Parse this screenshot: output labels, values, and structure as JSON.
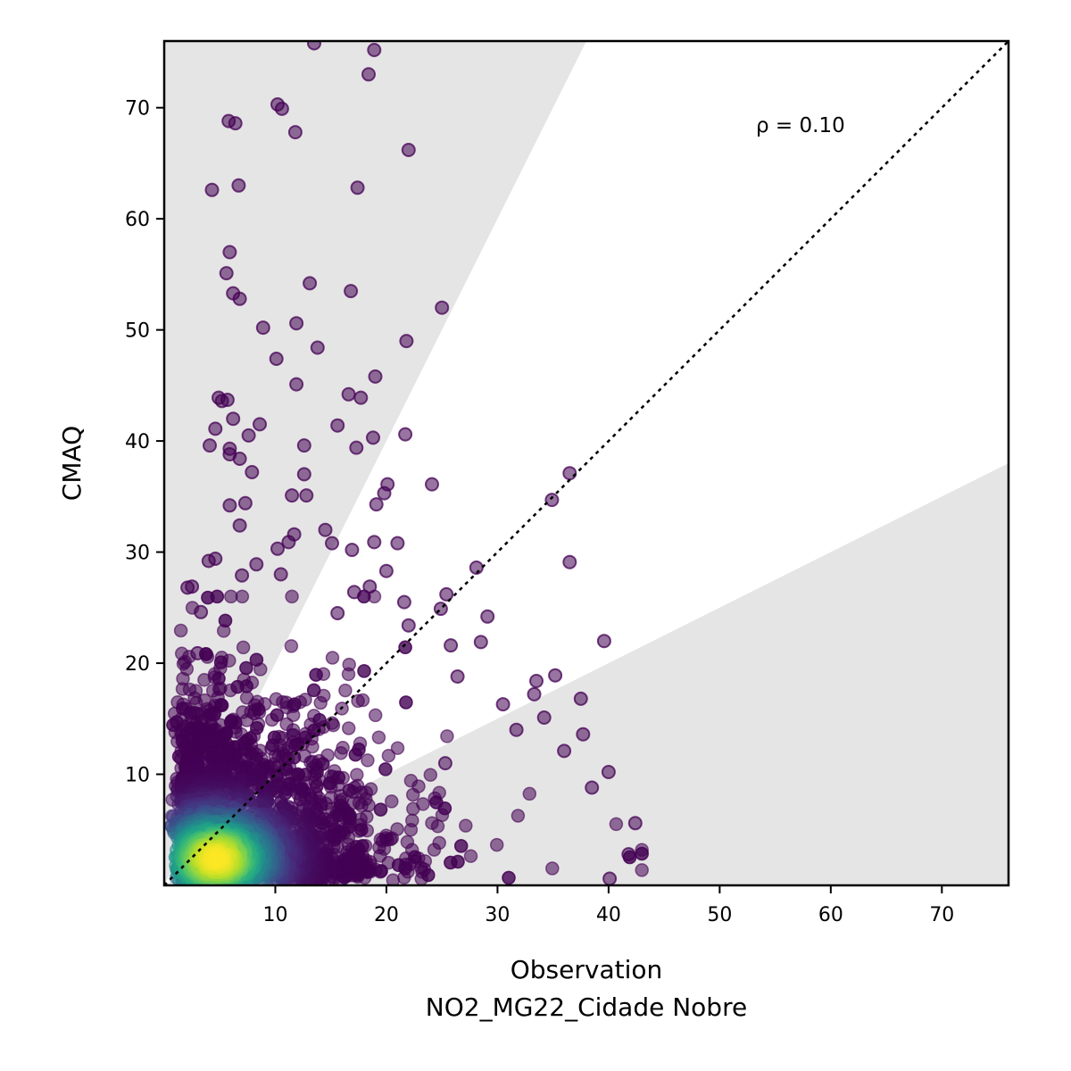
{
  "chart_data": {
    "type": "scatter",
    "xlabel": "Observation",
    "xlabel_line2": "NO2_MG22_Cidade Nobre",
    "ylabel": "CMAQ",
    "xlim": [
      0,
      76
    ],
    "ylim": [
      0,
      76
    ],
    "xticks": [
      10,
      20,
      30,
      40,
      50,
      60,
      70
    ],
    "yticks": [
      10,
      20,
      30,
      40,
      50,
      60,
      70
    ],
    "annotation": "ρ = 0.10",
    "reference_line": "1:1",
    "shaded_band": "outside factor-of-2 (y > 2x and y < 0.5x)",
    "grid": false,
    "colormap": "viridis (point density)",
    "colors": {
      "low_density": "#440154",
      "high_density": "#fde725",
      "shade": "#e5e5e5"
    },
    "outlier_points": [
      [
        13.5,
        75.8
      ],
      [
        18.9,
        75.2
      ],
      [
        18.4,
        73.0
      ],
      [
        10.2,
        70.3
      ],
      [
        10.6,
        69.9
      ],
      [
        5.8,
        68.8
      ],
      [
        6.4,
        68.6
      ],
      [
        11.8,
        67.8
      ],
      [
        22.0,
        66.2
      ],
      [
        6.7,
        63.0
      ],
      [
        4.3,
        62.6
      ],
      [
        17.4,
        62.8
      ],
      [
        5.9,
        57.0
      ],
      [
        5.6,
        55.1
      ],
      [
        13.1,
        54.2
      ],
      [
        6.2,
        53.3
      ],
      [
        16.8,
        53.5
      ],
      [
        6.8,
        52.8
      ],
      [
        25.0,
        52.0
      ],
      [
        11.9,
        50.6
      ],
      [
        8.9,
        50.2
      ],
      [
        21.8,
        49.0
      ],
      [
        13.8,
        48.4
      ],
      [
        10.1,
        47.4
      ],
      [
        19.0,
        45.8
      ],
      [
        11.9,
        45.1
      ],
      [
        16.6,
        44.2
      ],
      [
        17.7,
        43.9
      ],
      [
        4.9,
        43.9
      ],
      [
        5.7,
        43.7
      ],
      [
        5.2,
        43.6
      ],
      [
        6.2,
        42.0
      ],
      [
        15.6,
        41.4
      ],
      [
        8.6,
        41.5
      ],
      [
        4.6,
        41.1
      ],
      [
        7.6,
        40.5
      ],
      [
        21.7,
        40.6
      ],
      [
        18.8,
        40.3
      ],
      [
        12.6,
        39.6
      ],
      [
        4.1,
        39.6
      ],
      [
        5.9,
        39.3
      ],
      [
        17.3,
        39.4
      ],
      [
        5.9,
        38.8
      ],
      [
        6.8,
        38.4
      ],
      [
        7.9,
        37.2
      ],
      [
        36.5,
        37.1
      ],
      [
        12.6,
        37.0
      ],
      [
        20.1,
        36.1
      ],
      [
        24.1,
        36.1
      ],
      [
        19.8,
        35.3
      ],
      [
        11.5,
        35.1
      ],
      [
        12.8,
        35.1
      ],
      [
        34.9,
        34.7
      ],
      [
        7.3,
        34.4
      ],
      [
        5.9,
        34.2
      ],
      [
        19.1,
        34.3
      ],
      [
        6.8,
        32.4
      ],
      [
        14.5,
        32.0
      ],
      [
        11.7,
        31.6
      ],
      [
        15.1,
        30.8
      ],
      [
        11.2,
        30.9
      ],
      [
        18.9,
        30.9
      ],
      [
        21.0,
        30.8
      ],
      [
        16.9,
        30.2
      ],
      [
        10.2,
        30.3
      ],
      [
        36.5,
        29.1
      ],
      [
        28.1,
        28.6
      ],
      [
        4.0,
        29.2
      ],
      [
        4.6,
        29.4
      ],
      [
        8.3,
        28.9
      ],
      [
        20.0,
        28.3
      ],
      [
        10.5,
        28.0
      ],
      [
        7.0,
        27.9
      ],
      [
        2.1,
        26.8
      ],
      [
        2.5,
        26.9
      ],
      [
        18.5,
        26.9
      ],
      [
        25.4,
        26.2
      ],
      [
        17.1,
        26.4
      ],
      [
        21.6,
        25.5
      ],
      [
        24.9,
        24.9
      ],
      [
        29.1,
        24.2
      ],
      [
        15.6,
        24.5
      ],
      [
        3.3,
        24.6
      ],
      [
        22.0,
        23.4
      ],
      [
        39.6,
        22.0
      ],
      [
        25.8,
        21.6
      ],
      [
        28.5,
        21.9
      ],
      [
        3.0,
        20.9
      ],
      [
        35.2,
        18.9
      ],
      [
        33.5,
        18.4
      ],
      [
        26.4,
        18.8
      ],
      [
        37.5,
        16.8
      ],
      [
        30.5,
        16.3
      ],
      [
        34.2,
        15.1
      ],
      [
        37.7,
        13.6
      ],
      [
        40.0,
        10.2
      ],
      [
        42.4,
        5.6
      ],
      [
        41.8,
        2.8
      ],
      [
        40.1,
        0.6
      ],
      [
        38.5,
        8.8
      ],
      [
        36.0,
        12.1
      ],
      [
        33.3,
        17.2
      ],
      [
        31.7,
        14.0
      ],
      [
        25.3,
        11.0
      ]
    ],
    "outlier_count": 104
  }
}
